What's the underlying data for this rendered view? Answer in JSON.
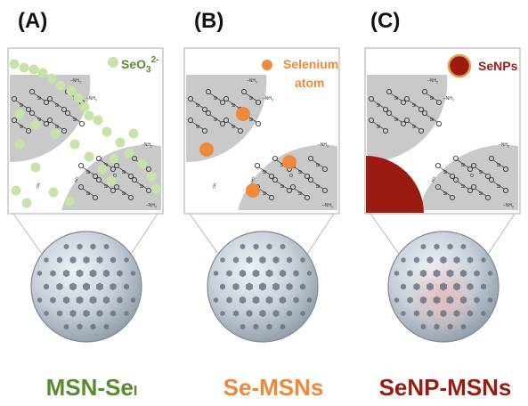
{
  "panels": [
    {
      "letter": "(A)",
      "legend": "SeO",
      "legend_sub": "3",
      "legend_sup": "2-",
      "label": "MSN-Se",
      "label_sub": "I"
    },
    {
      "letter": "(B)",
      "legend_line1": "Selenium",
      "legend_line2": "atom",
      "label": "Se-MSNs"
    },
    {
      "letter": "(C)",
      "legend": "SeNPs",
      "label": "SeNP-MSNs"
    }
  ],
  "chem": {
    "nh2": "NH",
    "nh2_sub": "2",
    "si": "Si",
    "o": "O",
    "ho": "HO",
    "oh": "OH"
  },
  "colors": {
    "panel_a_label": "#5a8a2e",
    "panel_b_label": "#f0883a",
    "panel_c_label": "#9b1b12",
    "seo3_dot": "#c6e3a8",
    "selenium_atom": "#ef8a3c",
    "senp_fill": "#9b1b12",
    "senp_border": "#e0a050",
    "silica": "#c9c9c9",
    "sphere": "#c9d2db",
    "pore": "#6a7380"
  }
}
